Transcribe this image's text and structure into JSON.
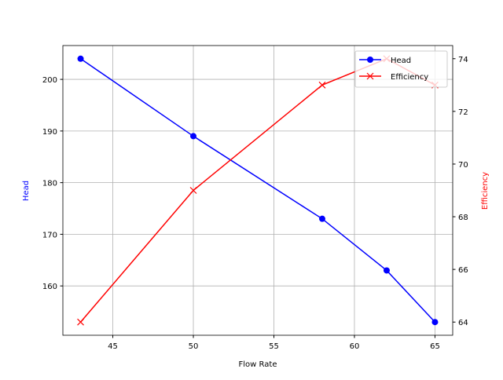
{
  "chart_data": {
    "type": "line",
    "title": "",
    "xlabel": "Flow Rate",
    "ylabel": "Head",
    "y2label": "Efficiency",
    "x": [
      43,
      50,
      58,
      62,
      65
    ],
    "xlim": [
      41.9,
      66.1
    ],
    "ylim": [
      150.45,
      206.55
    ],
    "y2lim": [
      63.5,
      74.5
    ],
    "xticks": [
      45,
      50,
      55,
      60,
      65
    ],
    "yticks": [
      160,
      170,
      180,
      190,
      200
    ],
    "y2ticks": [
      64,
      66,
      68,
      70,
      72,
      74
    ],
    "grid": true,
    "legend_position": "top-right",
    "series": [
      {
        "name": "Head",
        "axis": "left",
        "values": [
          204,
          189,
          173,
          163,
          153
        ],
        "color": "#0000ff",
        "marker": "circle"
      },
      {
        "name": "Efficiency",
        "axis": "right",
        "values": [
          64,
          69,
          73,
          74,
          73
        ],
        "color": "#ff0000",
        "marker": "x"
      }
    ]
  }
}
